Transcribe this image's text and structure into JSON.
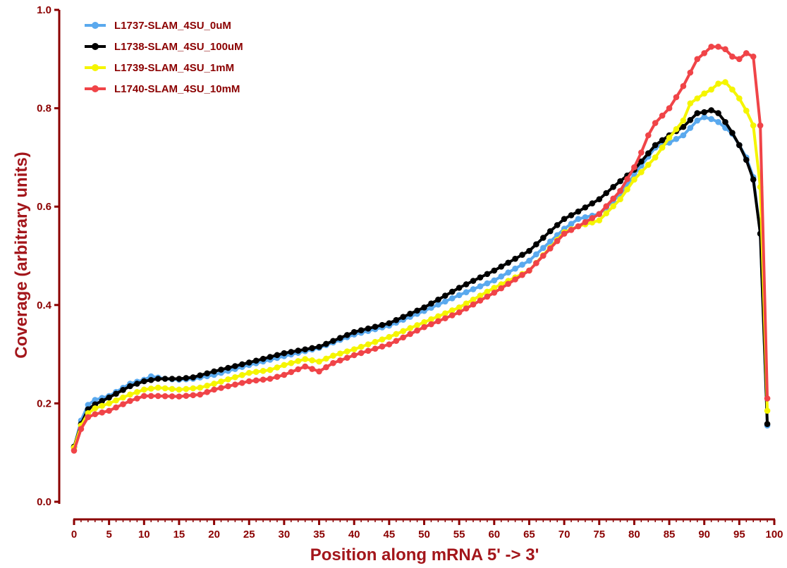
{
  "chart_data": {
    "type": "line",
    "xlabel": "Position along mRNA 5' -> 3'",
    "ylabel": "Coverage (arbitrary units)",
    "xlim": [
      0,
      100
    ],
    "ylim": [
      0,
      1.0
    ],
    "xticks": [
      "0",
      "5",
      "10",
      "15",
      "20",
      "25",
      "30",
      "35",
      "40",
      "45",
      "50",
      "55",
      "60",
      "65",
      "70",
      "75",
      "80",
      "85",
      "90",
      "95",
      "100"
    ],
    "yticks": [
      "0.0",
      "0.2",
      "0.4",
      "0.6",
      "0.8",
      "1.0"
    ],
    "grid": false,
    "legend_position": "top-left",
    "series": [
      {
        "name": "L1737-SLAM_4SU_0uM",
        "color": "#5aa9ee",
        "knots": [
          [
            0,
            0.11
          ],
          [
            1,
            0.165
          ],
          [
            2,
            0.197
          ],
          [
            3,
            0.207
          ],
          [
            5,
            0.215
          ],
          [
            8,
            0.24
          ],
          [
            10,
            0.248
          ],
          [
            11,
            0.255
          ],
          [
            13,
            0.25
          ],
          [
            15,
            0.248
          ],
          [
            17,
            0.25
          ],
          [
            20,
            0.258
          ],
          [
            25,
            0.278
          ],
          [
            30,
            0.296
          ],
          [
            35,
            0.313
          ],
          [
            40,
            0.34
          ],
          [
            45,
            0.358
          ],
          [
            50,
            0.388
          ],
          [
            55,
            0.42
          ],
          [
            60,
            0.45
          ],
          [
            65,
            0.49
          ],
          [
            70,
            0.555
          ],
          [
            72,
            0.575
          ],
          [
            75,
            0.585
          ],
          [
            78,
            0.625
          ],
          [
            80,
            0.665
          ],
          [
            83,
            0.72
          ],
          [
            85,
            0.73
          ],
          [
            87,
            0.745
          ],
          [
            89,
            0.775
          ],
          [
            90,
            0.782
          ],
          [
            91,
            0.778
          ],
          [
            92,
            0.772
          ],
          [
            93,
            0.76
          ],
          [
            94,
            0.748
          ],
          [
            95,
            0.725
          ],
          [
            96,
            0.7
          ],
          [
            97,
            0.66
          ],
          [
            98,
            0.545
          ],
          [
            99,
            0.155
          ]
        ]
      },
      {
        "name": "L1738-SLAM_4SU_100uM",
        "color": "#000000",
        "knots": [
          [
            0,
            0.112
          ],
          [
            1,
            0.158
          ],
          [
            2,
            0.188
          ],
          [
            3,
            0.198
          ],
          [
            5,
            0.212
          ],
          [
            8,
            0.235
          ],
          [
            10,
            0.245
          ],
          [
            12,
            0.25
          ],
          [
            15,
            0.25
          ],
          [
            17,
            0.253
          ],
          [
            20,
            0.265
          ],
          [
            25,
            0.283
          ],
          [
            30,
            0.302
          ],
          [
            35,
            0.315
          ],
          [
            40,
            0.345
          ],
          [
            45,
            0.363
          ],
          [
            50,
            0.395
          ],
          [
            55,
            0.435
          ],
          [
            60,
            0.47
          ],
          [
            65,
            0.51
          ],
          [
            68,
            0.55
          ],
          [
            70,
            0.575
          ],
          [
            72,
            0.59
          ],
          [
            75,
            0.615
          ],
          [
            77,
            0.64
          ],
          [
            80,
            0.675
          ],
          [
            83,
            0.725
          ],
          [
            85,
            0.745
          ],
          [
            87,
            0.762
          ],
          [
            89,
            0.79
          ],
          [
            90,
            0.792
          ],
          [
            91,
            0.796
          ],
          [
            92,
            0.79
          ],
          [
            93,
            0.772
          ],
          [
            94,
            0.75
          ],
          [
            95,
            0.725
          ],
          [
            96,
            0.695
          ],
          [
            97,
            0.655
          ],
          [
            98,
            0.545
          ],
          [
            99,
            0.158
          ]
        ]
      },
      {
        "name": "L1739-SLAM_4SU_1mM",
        "color": "#f5f500",
        "knots": [
          [
            0,
            0.11
          ],
          [
            1,
            0.155
          ],
          [
            2,
            0.18
          ],
          [
            3,
            0.19
          ],
          [
            5,
            0.2
          ],
          [
            8,
            0.218
          ],
          [
            10,
            0.228
          ],
          [
            12,
            0.232
          ],
          [
            15,
            0.228
          ],
          [
            18,
            0.232
          ],
          [
            20,
            0.24
          ],
          [
            25,
            0.262
          ],
          [
            28,
            0.268
          ],
          [
            30,
            0.278
          ],
          [
            33,
            0.29
          ],
          [
            35,
            0.285
          ],
          [
            37,
            0.297
          ],
          [
            40,
            0.31
          ],
          [
            45,
            0.335
          ],
          [
            50,
            0.365
          ],
          [
            55,
            0.395
          ],
          [
            60,
            0.435
          ],
          [
            65,
            0.47
          ],
          [
            70,
            0.548
          ],
          [
            72,
            0.56
          ],
          [
            75,
            0.572
          ],
          [
            78,
            0.615
          ],
          [
            80,
            0.655
          ],
          [
            83,
            0.7
          ],
          [
            85,
            0.74
          ],
          [
            87,
            0.775
          ],
          [
            88,
            0.81
          ],
          [
            90,
            0.83
          ],
          [
            91,
            0.838
          ],
          [
            92,
            0.85
          ],
          [
            93,
            0.853
          ],
          [
            94,
            0.838
          ],
          [
            95,
            0.82
          ],
          [
            96,
            0.795
          ],
          [
            97,
            0.765
          ],
          [
            98,
            0.64
          ],
          [
            99,
            0.185
          ]
        ]
      },
      {
        "name": "L1740-SLAM_4SU_10mM",
        "color": "#f04448",
        "knots": [
          [
            0,
            0.104
          ],
          [
            1,
            0.148
          ],
          [
            2,
            0.172
          ],
          [
            3,
            0.178
          ],
          [
            5,
            0.185
          ],
          [
            8,
            0.205
          ],
          [
            10,
            0.215
          ],
          [
            12,
            0.215
          ],
          [
            15,
            0.214
          ],
          [
            18,
            0.218
          ],
          [
            20,
            0.228
          ],
          [
            25,
            0.245
          ],
          [
            28,
            0.25
          ],
          [
            30,
            0.258
          ],
          [
            33,
            0.275
          ],
          [
            35,
            0.265
          ],
          [
            37,
            0.282
          ],
          [
            40,
            0.298
          ],
          [
            45,
            0.32
          ],
          [
            50,
            0.355
          ],
          [
            55,
            0.385
          ],
          [
            60,
            0.425
          ],
          [
            65,
            0.47
          ],
          [
            70,
            0.545
          ],
          [
            72,
            0.56
          ],
          [
            75,
            0.585
          ],
          [
            78,
            0.632
          ],
          [
            80,
            0.68
          ],
          [
            81,
            0.71
          ],
          [
            82,
            0.745
          ],
          [
            83,
            0.77
          ],
          [
            85,
            0.8
          ],
          [
            87,
            0.845
          ],
          [
            89,
            0.9
          ],
          [
            90,
            0.912
          ],
          [
            91,
            0.925
          ],
          [
            92,
            0.925
          ],
          [
            93,
            0.92
          ],
          [
            94,
            0.905
          ],
          [
            95,
            0.9
          ],
          [
            96,
            0.912
          ],
          [
            97,
            0.905
          ],
          [
            98,
            0.765
          ],
          [
            99,
            0.21
          ]
        ]
      }
    ]
  }
}
